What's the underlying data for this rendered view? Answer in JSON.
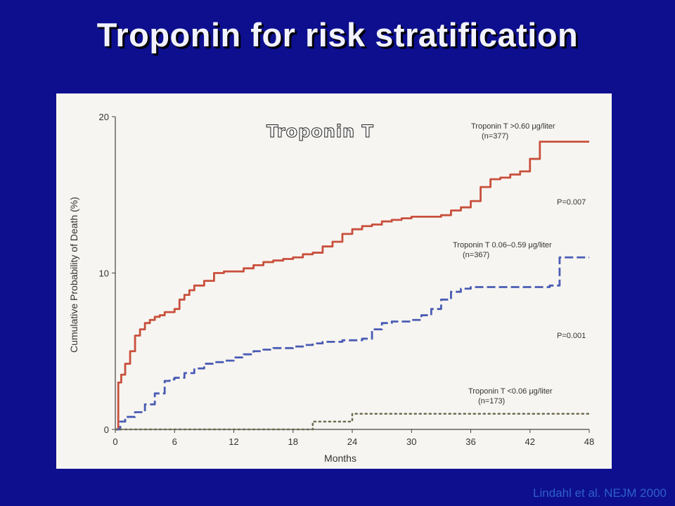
{
  "slide": {
    "title": "Troponin for risk stratification",
    "citation": "Lindahl et al. NEJM 2000"
  },
  "chart_data": {
    "type": "line",
    "step": true,
    "title": "Troponin T",
    "xlabel": "Months",
    "ylabel": "Cumulative Probability of Death (%)",
    "xlim": [
      0,
      48
    ],
    "ylim": [
      0,
      20
    ],
    "xticks": [
      0,
      6,
      12,
      18,
      24,
      30,
      36,
      42,
      48
    ],
    "yticks": [
      0,
      10,
      20
    ],
    "grid": false,
    "series": [
      {
        "name": "Troponin T >0.60 μg/liter",
        "n_label": "(n=377)",
        "color": "#c8503c",
        "style": "solid",
        "x": [
          0,
          0.3,
          0.6,
          1,
          1.5,
          2,
          2.5,
          3,
          3.5,
          4,
          4.5,
          5,
          6,
          6.5,
          7,
          7.5,
          8,
          9,
          10,
          11,
          12,
          13,
          14,
          15,
          16,
          17,
          18,
          19,
          20,
          21,
          22,
          23,
          24,
          25,
          26,
          27,
          28,
          29,
          30,
          31,
          32,
          33,
          34,
          35,
          36,
          37,
          38,
          39,
          40,
          41,
          42,
          43,
          44,
          45,
          46,
          47,
          48
        ],
        "y": [
          0,
          3.0,
          3.5,
          4.2,
          5.0,
          6.0,
          6.4,
          6.8,
          7.0,
          7.2,
          7.3,
          7.5,
          7.7,
          8.3,
          8.6,
          8.9,
          9.2,
          9.5,
          10.0,
          10.1,
          10.1,
          10.3,
          10.5,
          10.7,
          10.8,
          10.9,
          11.0,
          11.2,
          11.3,
          11.7,
          12.0,
          12.5,
          12.8,
          13.0,
          13.1,
          13.3,
          13.4,
          13.5,
          13.6,
          13.6,
          13.6,
          13.7,
          14.0,
          14.2,
          14.6,
          15.5,
          16.0,
          16.1,
          16.3,
          16.5,
          17.3,
          18.4,
          18.4,
          18.4,
          18.4,
          18.4,
          18.4
        ]
      },
      {
        "name": "Troponin T 0.06–0.59 μg/liter",
        "n_label": "(n=367)",
        "color": "#4a5cb4",
        "style": "dashed",
        "x": [
          0,
          0.5,
          1,
          2,
          3,
          4,
          5,
          5.5,
          6,
          7,
          8,
          9,
          10,
          11,
          12,
          13,
          14,
          15,
          16,
          17,
          18,
          19,
          20,
          21,
          22,
          23,
          24,
          25,
          26,
          27,
          28,
          29,
          30,
          31,
          32,
          33,
          34,
          35,
          36,
          37,
          38,
          39,
          40,
          41,
          42,
          43,
          44,
          45,
          46,
          47,
          48
        ],
        "y": [
          0,
          0.5,
          0.8,
          1.1,
          1.6,
          2.3,
          3.1,
          3.2,
          3.3,
          3.6,
          3.9,
          4.2,
          4.3,
          4.4,
          4.6,
          4.8,
          5.0,
          5.1,
          5.2,
          5.2,
          5.3,
          5.4,
          5.5,
          5.6,
          5.6,
          5.7,
          5.7,
          5.8,
          6.4,
          6.8,
          6.9,
          6.9,
          7.0,
          7.3,
          7.7,
          8.3,
          8.8,
          9.0,
          9.1,
          9.1,
          9.1,
          9.1,
          9.1,
          9.1,
          9.1,
          9.1,
          9.2,
          11.0,
          11.0,
          11.0,
          11.0
        ]
      },
      {
        "name": "Troponin T <0.06 μg/liter",
        "n_label": "(n=173)",
        "color": "#6f6c52",
        "style": "dotted",
        "x": [
          0,
          19.5,
          20,
          23.5,
          24,
          30,
          36,
          42,
          48
        ],
        "y": [
          0,
          0,
          0.5,
          0.5,
          1.0,
          1.0,
          1.0,
          1.0,
          1.0
        ]
      }
    ],
    "annotations": [
      "P=0.007",
      "P=0.001"
    ],
    "legend": "inline labels beside each curve"
  }
}
